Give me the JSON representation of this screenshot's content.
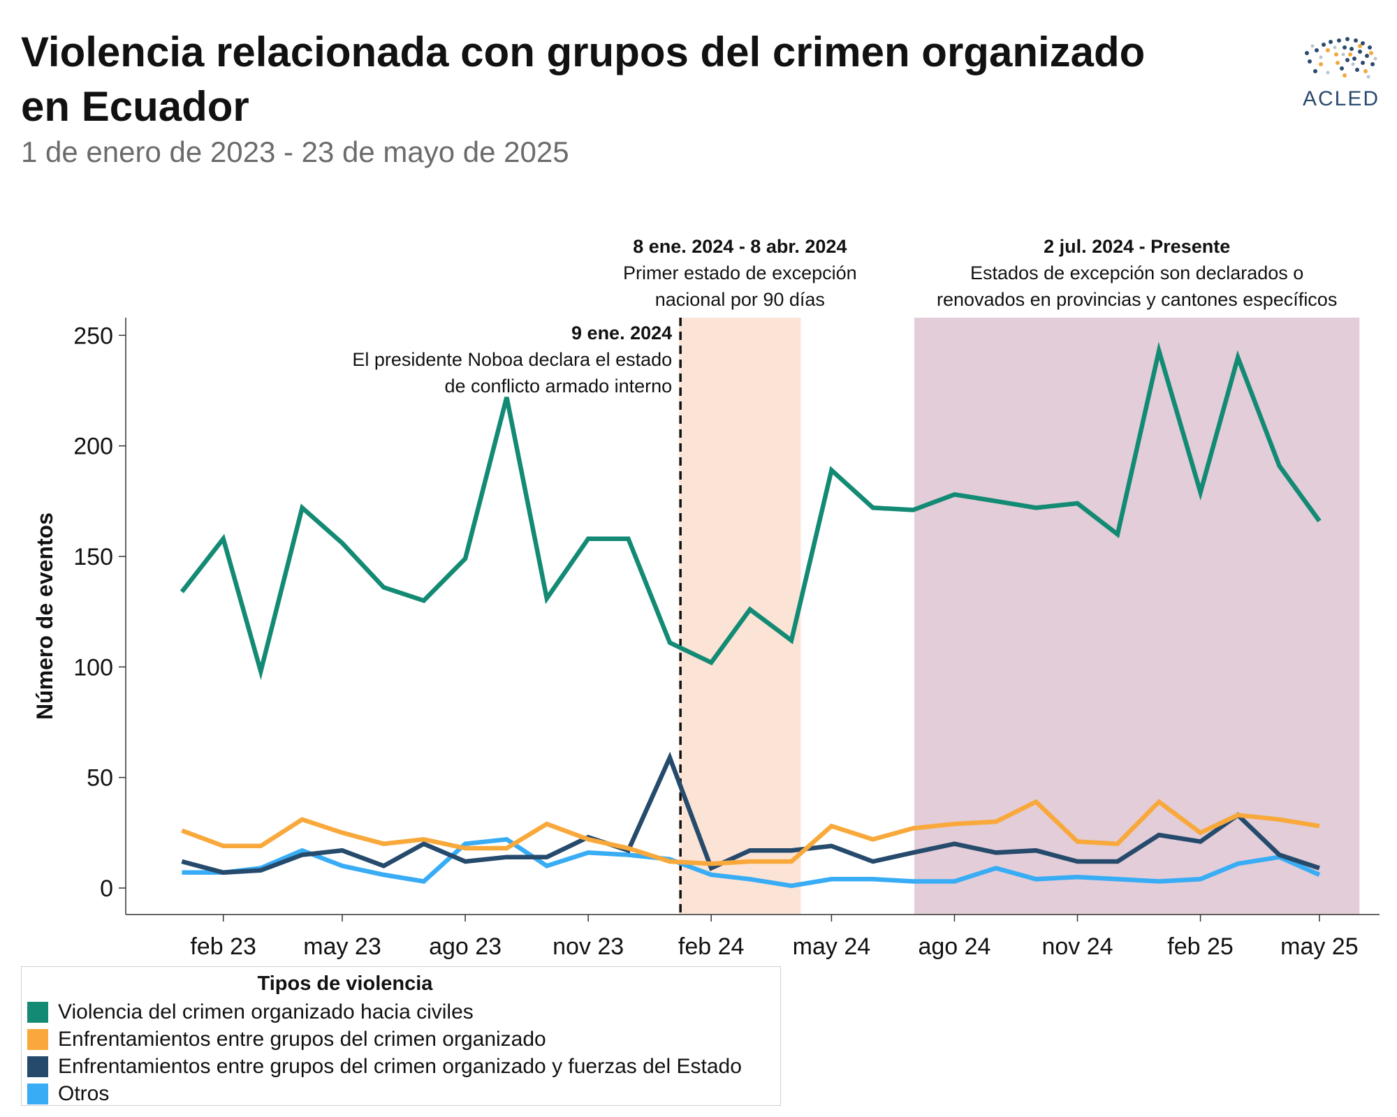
{
  "header": {
    "title": "Violencia relacionada con grupos del crimen organizado en Ecuador",
    "subtitle": "1 de enero de 2023 - 23 de mayo de 2025",
    "logo_text": "ACLED"
  },
  "colors": {
    "civiles": "#138a74",
    "grupos": "#f9a93b",
    "estado": "#264a6c",
    "otros": "#38acf5",
    "band_first": "#fbe4d6",
    "band_second": "#e2cdd8"
  },
  "chart_data": {
    "type": "line",
    "title": "Violencia relacionada con grupos del crimen organizado en Ecuador",
    "subtitle": "1 de enero de 2023 - 23 de mayo de 2025",
    "xlabel": "",
    "ylabel": "Número de eventos",
    "ylim": [
      -12,
      258
    ],
    "yticks": [
      0,
      50,
      100,
      150,
      200,
      250
    ],
    "x_tick_labels": [
      "feb 23",
      "may 23",
      "ago 23",
      "nov 23",
      "feb 24",
      "may 24",
      "ago 24",
      "nov 24",
      "feb 25",
      "may 25"
    ],
    "x_tick_dates": [
      "2023-02-01",
      "2023-05-01",
      "2023-08-01",
      "2023-11-01",
      "2024-02-01",
      "2024-05-01",
      "2024-08-01",
      "2024-11-01",
      "2025-02-01",
      "2025-05-01"
    ],
    "x_range": [
      "2022-11-20",
      "2025-06-15"
    ],
    "x": [
      "2023-01-01",
      "2023-02-01",
      "2023-03-01",
      "2023-04-01",
      "2023-05-01",
      "2023-06-01",
      "2023-07-01",
      "2023-08-01",
      "2023-09-01",
      "2023-10-01",
      "2023-11-01",
      "2023-12-01",
      "2024-01-01",
      "2024-02-01",
      "2024-03-01",
      "2024-04-01",
      "2024-05-01",
      "2024-06-01",
      "2024-07-01",
      "2024-08-01",
      "2024-09-01",
      "2024-10-01",
      "2024-11-01",
      "2024-12-01",
      "2025-01-01",
      "2025-02-01",
      "2025-03-01",
      "2025-04-01",
      "2025-05-01"
    ],
    "grid": false,
    "legend": {
      "title": "Tipos de violencia",
      "position": "bottom-left"
    },
    "series": [
      {
        "name": "Violencia del crimen organizado hacia civiles",
        "color": "#138a74",
        "values": [
          134,
          158,
          98,
          172,
          156,
          136,
          130,
          149,
          222,
          131,
          158,
          158,
          111,
          102,
          126,
          112,
          189,
          172,
          171,
          178,
          175,
          172,
          174,
          160,
          243,
          179,
          240,
          191,
          166
        ]
      },
      {
        "name": "Enfrentamientos entre grupos del crimen organizado",
        "color": "#f9a93b",
        "values": [
          26,
          19,
          19,
          31,
          25,
          20,
          22,
          18,
          18,
          29,
          22,
          18,
          12,
          11,
          12,
          12,
          28,
          22,
          27,
          29,
          30,
          39,
          21,
          20,
          39,
          25,
          33,
          31,
          28
        ]
      },
      {
        "name": "Enfrentamientos entre grupos del crimen organizado y fuerzas del Estado",
        "color": "#264a6c",
        "values": [
          12,
          7,
          8,
          15,
          17,
          10,
          20,
          12,
          14,
          14,
          23,
          17,
          59,
          9,
          17,
          17,
          19,
          12,
          16,
          20,
          16,
          17,
          12,
          12,
          24,
          21,
          33,
          15,
          9
        ]
      },
      {
        "name": "Otros",
        "color": "#38acf5",
        "values": [
          7,
          7,
          9,
          17,
          10,
          6,
          3,
          20,
          22,
          10,
          16,
          15,
          13,
          6,
          4,
          1,
          4,
          4,
          3,
          3,
          9,
          4,
          5,
          4,
          3,
          4,
          11,
          14,
          6
        ]
      }
    ],
    "bands": [
      {
        "start": "2024-01-08",
        "end": "2024-04-08",
        "color": "#fbe4d6",
        "date_label": "8 ene. 2024 - 8 abr. 2024",
        "text": [
          "Primer estado de excepción",
          "nacional por 90 días"
        ]
      },
      {
        "start": "2024-07-02",
        "end": "2025-05-31",
        "color": "#e2cdd8",
        "date_label": "2 jul. 2024 - Presente",
        "text": [
          "Estados de excepción son declarados o",
          "renovados en provincias y cantones específicos"
        ]
      }
    ],
    "vline": {
      "date": "2024-01-09",
      "date_label": "9 ene. 2024",
      "text": [
        "El presidente Noboa declara el estado",
        "de conflicto armado interno"
      ]
    }
  }
}
